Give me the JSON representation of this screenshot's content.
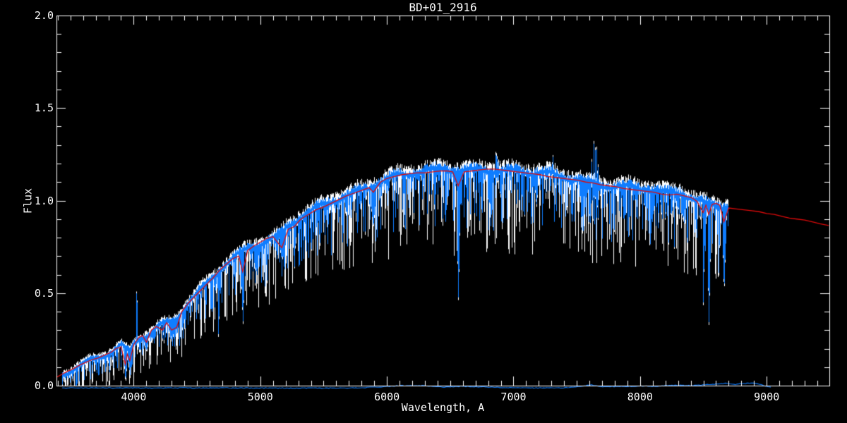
{
  "title": "BD+01_2916",
  "axes": {
    "x": {
      "label": "Wavelength, A",
      "min": 3390,
      "max": 9495,
      "major_ticks": [
        4000,
        5000,
        6000,
        7000,
        8000,
        9000
      ],
      "major_tick_labels": [
        "4000",
        "5000",
        "6000",
        "7000",
        "8000",
        "9000"
      ],
      "minor_step": 100
    },
    "y": {
      "label": "Flux",
      "min": 0,
      "max": 2,
      "major_ticks": [
        0,
        0.5,
        1,
        1.5,
        2
      ],
      "major_tick_labels": [
        "0.0",
        "0.5",
        "1.0",
        "1.5",
        "2.0"
      ],
      "minor_step": 0.1
    }
  },
  "colors": {
    "background": "#000000",
    "frame": "#ffffff",
    "text": "#ffffff",
    "observed_blue": "#0f7dff",
    "noise_white": "#ffffff",
    "model_red": "#dd0a0a"
  },
  "chart_data": {
    "type": "line",
    "title": "BD+01_2916",
    "xlabel": "Wavelength, A",
    "ylabel": "Flux",
    "xlim": [
      3390,
      9495
    ],
    "ylim": [
      0,
      2
    ],
    "grid": false,
    "legend": false,
    "series": [
      {
        "name": "observed-spectrum",
        "kind": "noisy-band",
        "color_core": "#0f7dff",
        "color_noise": "#ffffff",
        "range": [
          3437,
          8690
        ],
        "continuum": [
          [
            3437,
            0.075
          ],
          [
            3500,
            0.09
          ],
          [
            3560,
            0.107
          ],
          [
            3620,
            0.123
          ],
          [
            3680,
            0.138
          ],
          [
            3740,
            0.152
          ],
          [
            3800,
            0.168
          ],
          [
            3850,
            0.19
          ],
          [
            3900,
            0.21
          ],
          [
            3935,
            0.185
          ],
          [
            3965,
            0.175
          ],
          [
            4000,
            0.225
          ],
          [
            4050,
            0.258
          ],
          [
            4100,
            0.28
          ],
          [
            4150,
            0.305
          ],
          [
            4200,
            0.33
          ],
          [
            4250,
            0.345
          ],
          [
            4300,
            0.35
          ],
          [
            4350,
            0.385
          ],
          [
            4400,
            0.435
          ],
          [
            4450,
            0.468
          ],
          [
            4500,
            0.5
          ],
          [
            4550,
            0.53
          ],
          [
            4600,
            0.558
          ],
          [
            4650,
            0.595
          ],
          [
            4700,
            0.635
          ],
          [
            4750,
            0.665
          ],
          [
            4800,
            0.695
          ],
          [
            4850,
            0.71
          ],
          [
            4900,
            0.738
          ],
          [
            4950,
            0.758
          ],
          [
            5000,
            0.778
          ],
          [
            5050,
            0.793
          ],
          [
            5100,
            0.808
          ],
          [
            5150,
            0.818
          ],
          [
            5200,
            0.855
          ],
          [
            5250,
            0.882
          ],
          [
            5300,
            0.908
          ],
          [
            5350,
            0.925
          ],
          [
            5400,
            0.94
          ],
          [
            5450,
            0.955
          ],
          [
            5500,
            0.968
          ],
          [
            5550,
            0.983
          ],
          [
            5600,
            0.998
          ],
          [
            5650,
            1.013
          ],
          [
            5700,
            1.028
          ],
          [
            5750,
            1.043
          ],
          [
            5800,
            1.058
          ],
          [
            5850,
            1.072
          ],
          [
            5900,
            1.095
          ],
          [
            5950,
            1.113
          ],
          [
            6000,
            1.128
          ],
          [
            6100,
            1.14
          ],
          [
            6200,
            1.148
          ],
          [
            6300,
            1.152
          ],
          [
            6400,
            1.158
          ],
          [
            6500,
            1.158
          ],
          [
            6600,
            1.16
          ],
          [
            6700,
            1.168
          ],
          [
            6800,
            1.17
          ],
          [
            6900,
            1.168
          ],
          [
            7000,
            1.16
          ],
          [
            7100,
            1.152
          ],
          [
            7200,
            1.142
          ],
          [
            7300,
            1.132
          ],
          [
            7400,
            1.122
          ],
          [
            7500,
            1.116
          ],
          [
            7600,
            1.1
          ],
          [
            7700,
            1.092
          ],
          [
            7800,
            1.082
          ],
          [
            7900,
            1.072
          ],
          [
            8000,
            1.062
          ],
          [
            8100,
            1.052
          ],
          [
            8200,
            1.032
          ],
          [
            8300,
            1.042
          ],
          [
            8400,
            1.02
          ],
          [
            8500,
            0.992
          ],
          [
            8600,
            0.982
          ],
          [
            8690,
            0.972
          ]
        ],
        "absorption_lines": [
          [
            3934,
            0.02,
            2
          ],
          [
            3969,
            0.05,
            2
          ],
          [
            4045,
            0.18,
            1
          ],
          [
            4101,
            0.19,
            2
          ],
          [
            4144,
            0.24,
            1
          ],
          [
            4227,
            0.25,
            1
          ],
          [
            4300,
            0.25,
            4
          ],
          [
            4340,
            0.27,
            2
          ],
          [
            4383,
            0.31,
            1
          ],
          [
            4404,
            0.33,
            1
          ],
          [
            4668,
            0.24,
            1
          ],
          [
            4861,
            0.33,
            2
          ],
          [
            4957,
            0.55,
            1
          ],
          [
            5051,
            0.56,
            1
          ],
          [
            5170,
            0.68,
            4
          ],
          [
            5270,
            0.72,
            2
          ],
          [
            5890,
            0.85,
            3
          ],
          [
            6122,
            0.95,
            1
          ],
          [
            6563,
            0.455,
            2
          ],
          [
            7180,
            0.97,
            2
          ],
          [
            8498,
            0.4,
            1
          ],
          [
            8542,
            0.33,
            2
          ],
          [
            8620,
            0.6,
            1
          ],
          [
            8662,
            0.5,
            2
          ]
        ],
        "emission_spikes": [
          [
            4022,
            0.56,
            1
          ],
          [
            7309,
            1.24,
            1
          ]
        ],
        "telluric_bands": [
          {
            "from": 7590,
            "to": 7688,
            "up": 1.31,
            "down": 0.88
          },
          {
            "from": 6852,
            "to": 6896,
            "up": 1.25,
            "down": 1.02
          },
          {
            "from": 8120,
            "to": 8380,
            "up": 1.08,
            "down": 0.9
          }
        ]
      },
      {
        "name": "model-spectrum",
        "kind": "line",
        "color": "#dd0a0a",
        "points": [
          [
            3390,
            0.045
          ],
          [
            3430,
            0.06
          ],
          [
            3470,
            0.075
          ],
          [
            3520,
            0.09
          ],
          [
            3570,
            0.11
          ],
          [
            3620,
            0.125
          ],
          [
            3670,
            0.14
          ],
          [
            3720,
            0.15
          ],
          [
            3770,
            0.165
          ],
          [
            3820,
            0.18
          ],
          [
            3860,
            0.2
          ],
          [
            3900,
            0.21
          ],
          [
            3934,
            0.115
          ],
          [
            3950,
            0.17
          ],
          [
            3969,
            0.135
          ],
          [
            4000,
            0.22
          ],
          [
            4040,
            0.26
          ],
          [
            4070,
            0.27
          ],
          [
            4101,
            0.235
          ],
          [
            4140,
            0.3
          ],
          [
            4180,
            0.32
          ],
          [
            4227,
            0.3
          ],
          [
            4260,
            0.34
          ],
          [
            4300,
            0.3
          ],
          [
            4340,
            0.315
          ],
          [
            4380,
            0.4
          ],
          [
            4430,
            0.445
          ],
          [
            4480,
            0.48
          ],
          [
            4530,
            0.515
          ],
          [
            4580,
            0.55
          ],
          [
            4630,
            0.585
          ],
          [
            4680,
            0.625
          ],
          [
            4730,
            0.655
          ],
          [
            4780,
            0.685
          ],
          [
            4830,
            0.7
          ],
          [
            4861,
            0.615
          ],
          [
            4900,
            0.73
          ],
          [
            4950,
            0.755
          ],
          [
            5000,
            0.775
          ],
          [
            5050,
            0.795
          ],
          [
            5100,
            0.805
          ],
          [
            5170,
            0.745
          ],
          [
            5220,
            0.845
          ],
          [
            5270,
            0.86
          ],
          [
            5320,
            0.9
          ],
          [
            5380,
            0.925
          ],
          [
            5440,
            0.95
          ],
          [
            5500,
            0.965
          ],
          [
            5560,
            0.985
          ],
          [
            5620,
            1.005
          ],
          [
            5680,
            1.025
          ],
          [
            5740,
            1.04
          ],
          [
            5800,
            1.055
          ],
          [
            5860,
            1.07
          ],
          [
            5893,
            1.045
          ],
          [
            5950,
            1.1
          ],
          [
            6000,
            1.12
          ],
          [
            6060,
            1.13
          ],
          [
            6120,
            1.14
          ],
          [
            6180,
            1.145
          ],
          [
            6240,
            1.15
          ],
          [
            6300,
            1.15
          ],
          [
            6360,
            1.155
          ],
          [
            6420,
            1.16
          ],
          [
            6480,
            1.16
          ],
          [
            6520,
            1.155
          ],
          [
            6563,
            1.08
          ],
          [
            6610,
            1.155
          ],
          [
            6670,
            1.16
          ],
          [
            6730,
            1.165
          ],
          [
            6790,
            1.17
          ],
          [
            6850,
            1.17
          ],
          [
            6910,
            1.165
          ],
          [
            6970,
            1.16
          ],
          [
            7030,
            1.155
          ],
          [
            7090,
            1.15
          ],
          [
            7150,
            1.145
          ],
          [
            7210,
            1.14
          ],
          [
            7270,
            1.13
          ],
          [
            7330,
            1.125
          ],
          [
            7390,
            1.12
          ],
          [
            7450,
            1.115
          ],
          [
            7510,
            1.11
          ],
          [
            7570,
            1.1
          ],
          [
            7630,
            1.095
          ],
          [
            7690,
            1.085
          ],
          [
            7750,
            1.08
          ],
          [
            7810,
            1.075
          ],
          [
            7870,
            1.065
          ],
          [
            7930,
            1.06
          ],
          [
            7990,
            1.055
          ],
          [
            8050,
            1.05
          ],
          [
            8110,
            1.045
          ],
          [
            8170,
            1.035
          ],
          [
            8230,
            1.03
          ],
          [
            8290,
            1.035
          ],
          [
            8350,
            1.025
          ],
          [
            8410,
            1.015
          ],
          [
            8450,
            0.995
          ],
          [
            8498,
            0.935
          ],
          [
            8520,
            0.975
          ],
          [
            8542,
            0.925
          ],
          [
            8570,
            0.98
          ],
          [
            8600,
            0.985
          ],
          [
            8630,
            0.975
          ],
          [
            8662,
            0.885
          ],
          [
            8700,
            0.96
          ],
          [
            8760,
            0.955
          ],
          [
            8820,
            0.95
          ],
          [
            8880,
            0.945
          ],
          [
            8940,
            0.94
          ],
          [
            9000,
            0.93
          ],
          [
            9060,
            0.925
          ],
          [
            9120,
            0.915
          ],
          [
            9180,
            0.905
          ],
          [
            9240,
            0.9
          ],
          [
            9300,
            0.895
          ],
          [
            9360,
            0.885
          ],
          [
            9420,
            0.875
          ],
          [
            9490,
            0.865
          ]
        ]
      },
      {
        "name": "error-spectrum",
        "kind": "line",
        "color": "#0f7dff",
        "points": [
          [
            3437,
            -0.012
          ],
          [
            4500,
            -0.012
          ],
          [
            5400,
            -0.013
          ],
          [
            5800,
            -0.012
          ],
          [
            6000,
            -0.005
          ],
          [
            6100,
            0.0
          ],
          [
            6300,
            0.0
          ],
          [
            6450,
            -0.008
          ],
          [
            6600,
            -0.004
          ],
          [
            7000,
            -0.012
          ],
          [
            7400,
            -0.012
          ],
          [
            7550,
            -0.002
          ],
          [
            7620,
            0.004
          ],
          [
            7700,
            -0.006
          ],
          [
            7900,
            -0.004
          ],
          [
            8000,
            -0.002
          ],
          [
            8100,
            -0.004
          ],
          [
            8200,
            0.0
          ],
          [
            8300,
            0.002
          ],
          [
            8400,
            0.0
          ],
          [
            8500,
            0.004
          ],
          [
            8600,
            0.008
          ],
          [
            8680,
            0.012
          ],
          [
            8750,
            0.006
          ],
          [
            8800,
            0.01
          ],
          [
            8900,
            0.014
          ],
          [
            8950,
            0.006
          ],
          [
            9000,
            -0.005
          ],
          [
            9040,
            -0.01
          ]
        ]
      }
    ]
  }
}
